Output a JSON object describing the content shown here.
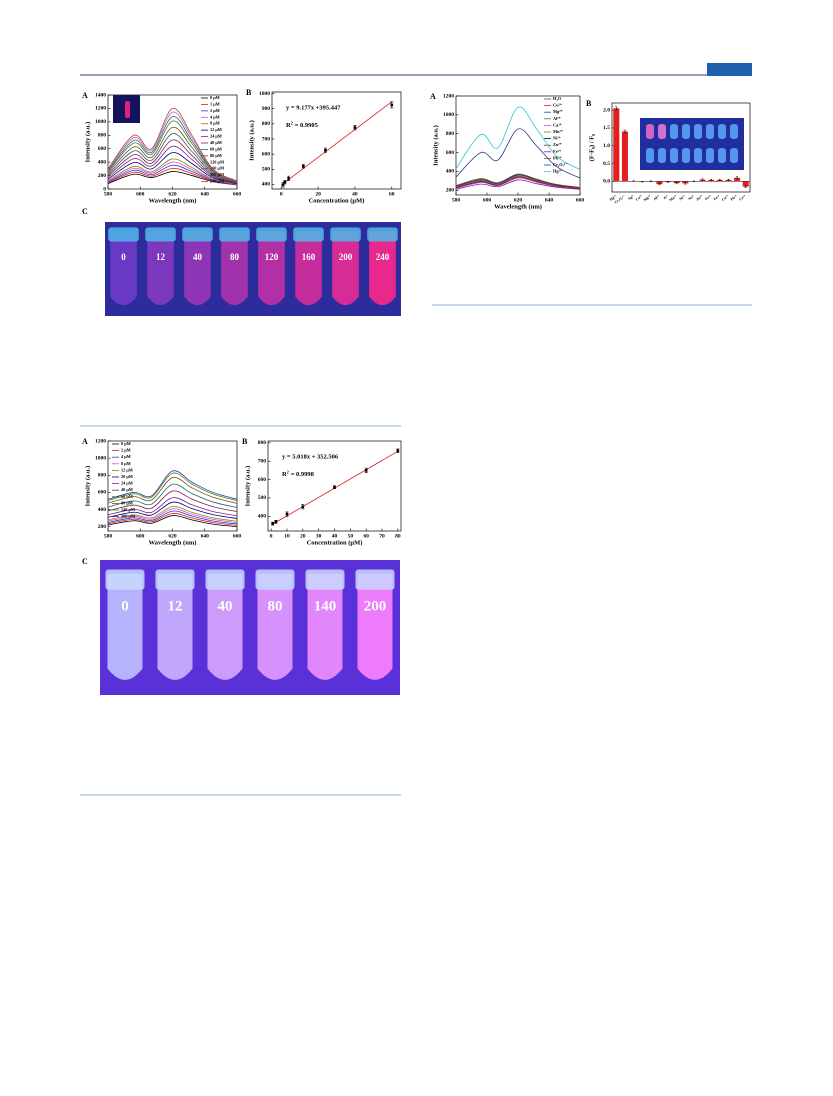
{
  "chart_data": [
    {
      "type": "line",
      "panel": "A",
      "xlabel": "Wavelength (nm)",
      "ylabel": "Intensity (a.u.)",
      "legend": "upper right",
      "xlim": [
        580,
        660
      ],
      "xticks": [
        580,
        600,
        620,
        640,
        660
      ],
      "ylim": [
        0,
        1400
      ],
      "yticks": [
        0,
        200,
        400,
        600,
        800,
        1000,
        1200,
        1400
      ],
      "x": [
        580,
        596,
        607,
        620,
        632,
        645,
        660
      ],
      "series": [
        {
          "name": "0 μM",
          "color": "#000000",
          "values": [
            80,
            220,
            170,
            260,
            200,
            110,
            60
          ]
        },
        {
          "name": "1 μM",
          "color": "#e31a1c",
          "values": [
            91,
            249,
            192,
            307,
            230,
            120,
            63
          ]
        },
        {
          "name": "2 μM",
          "color": "#1f3fd0",
          "values": [
            102,
            278,
            213,
            354,
            260,
            129,
            66
          ]
        },
        {
          "name": "4 μM",
          "color": "#e040e0",
          "values": [
            113,
            307,
            235,
            401,
            290,
            139,
            69
          ]
        },
        {
          "name": "8 μM",
          "color": "#8a8a00",
          "values": [
            124,
            336,
            256,
            448,
            320,
            148,
            72
          ]
        },
        {
          "name": "12 μM",
          "color": "#00007a",
          "values": [
            146,
            394,
            299,
            542,
            380,
            167,
            78
          ]
        },
        {
          "name": "24 μM",
          "color": "#7a1fa0",
          "values": [
            168,
            452,
            342,
            636,
            440,
            186,
            84
          ]
        },
        {
          "name": "40 μM",
          "color": "#8a1a3a",
          "values": [
            190,
            510,
            385,
            730,
            500,
            205,
            90
          ]
        },
        {
          "name": "60 μM",
          "color": "#1a6a7a",
          "values": [
            212,
            568,
            428,
            824,
            560,
            224,
            96
          ]
        },
        {
          "name": "80 μM",
          "color": "#8a4a10",
          "values": [
            234,
            626,
            471,
            918,
            620,
            243,
            102
          ]
        },
        {
          "name": "120 μM",
          "color": "#2a8a2a",
          "values": [
            256,
            684,
            514,
            1012,
            680,
            262,
            108
          ]
        },
        {
          "name": "160 μM",
          "color": "#4a4aa0",
          "values": [
            271,
            725,
            544,
            1078,
            722,
            275,
            112
          ]
        },
        {
          "name": "200 μM",
          "color": "#a07ab0",
          "values": [
            287,
            765,
            574,
            1144,
            764,
            289,
            116
          ]
        },
        {
          "name": "240 μM",
          "color": "#c03a3a",
          "values": [
            300,
            800,
            600,
            1200,
            800,
            300,
            120
          ]
        }
      ]
    },
    {
      "type": "scatter",
      "panel": "B",
      "xlabel": "Concentration (μM)",
      "ylabel": "Intensity (a.u.)",
      "xlim": [
        -5,
        65
      ],
      "xticks": [
        0,
        20,
        40,
        60
      ],
      "ylim": [
        370,
        1010
      ],
      "yticks": [
        400,
        500,
        600,
        700,
        800,
        900,
        1000
      ],
      "equation": "y = 9.177x +395.447",
      "r2": {
        "base": "R",
        "sup": "2",
        "rest": "= 0.9905"
      },
      "x": [
        1,
        2,
        4,
        12,
        24,
        40,
        60
      ],
      "values": [
        398,
        415,
        440,
        520,
        625,
        775,
        925
      ],
      "errors": [
        15,
        12,
        15,
        12,
        15,
        15,
        20
      ],
      "color": "#000000",
      "fit": {
        "color": "#e31a1c",
        "x": [
          0,
          60
        ],
        "values": [
          395.447,
          946.067
        ]
      }
    },
    {
      "type": "line",
      "panel": "A",
      "xlabel": "Wavelength (nm)",
      "ylabel": "Intensity (a.u.)",
      "legend": "upper left",
      "xlim": [
        580,
        660
      ],
      "xticks": [
        580,
        600,
        620,
        640,
        660
      ],
      "ylim": [
        150,
        1200
      ],
      "yticks": [
        200,
        400,
        600,
        800,
        1000,
        1200
      ],
      "x": [
        580,
        596,
        607,
        620,
        632,
        645,
        660
      ],
      "series": [
        {
          "name": "0 μM",
          "color": "#000000",
          "values": [
            220,
            270,
            240,
            330,
            280,
            230,
            200
          ]
        },
        {
          "name": "2 μM",
          "color": "#e31a1c",
          "values": [
            235,
            287,
            256,
            356,
            302,
            249,
            216
          ]
        },
        {
          "name": "4 μM",
          "color": "#1f3fd0",
          "values": [
            250,
            303,
            272,
            382,
            324,
            267,
            232
          ]
        },
        {
          "name": "8 μM",
          "color": "#e040e0",
          "values": [
            265,
            320,
            288,
            408,
            346,
            286,
            248
          ]
        },
        {
          "name": "12 μM",
          "color": "#8a8a00",
          "values": [
            280,
            336,
            304,
            434,
            368,
            304,
            264
          ]
        },
        {
          "name": "20 μM",
          "color": "#00007a",
          "values": [
            310,
            369,
            336,
            486,
            412,
            341,
            296
          ]
        },
        {
          "name": "24 μM",
          "color": "#7a1fa0",
          "values": [
            340,
            402,
            368,
            538,
            456,
            378,
            328
          ]
        },
        {
          "name": "40 μM",
          "color": "#8a1a3a",
          "values": [
            385,
            452,
            416,
            616,
            522,
            434,
            376
          ]
        },
        {
          "name": "60 μM",
          "color": "#1a6a7a",
          "values": [
            430,
            501,
            464,
            694,
            588,
            489,
            424
          ]
        },
        {
          "name": "80 μM",
          "color": "#8a4a10",
          "values": [
            475,
            551,
            512,
            772,
            654,
            545,
            472
          ]
        },
        {
          "name": "140 μM",
          "color": "#2a8a2a",
          "values": [
            505,
            584,
            544,
            824,
            698,
            582,
            504
          ]
        },
        {
          "name": "200 μM",
          "color": "#3a3a90",
          "values": [
            520,
            600,
            560,
            850,
            720,
            600,
            520
          ]
        }
      ]
    },
    {
      "type": "scatter",
      "panel": "B",
      "xlabel": "Concentration (μM)",
      "ylabel": "Intensity (a.u.)",
      "xlim": [
        -2,
        82
      ],
      "xticks": [
        0,
        10,
        20,
        30,
        40,
        50,
        60,
        70,
        80
      ],
      "ylim": [
        320,
        810
      ],
      "yticks": [
        400,
        500,
        600,
        700,
        800
      ],
      "equation": "y = 5.018x + 352.506",
      "r2": {
        "base": "R",
        "sup": "2",
        "rest": "= 0.9998"
      },
      "x": [
        1,
        3,
        10,
        20,
        40,
        60,
        80
      ],
      "values": [
        360,
        370,
        412,
        452,
        558,
        650,
        757
      ],
      "errors": [
        8,
        8,
        12,
        12,
        8,
        12,
        10
      ],
      "color": "#000000",
      "fit": {
        "color": "#e31a1c",
        "x": [
          0,
          80
        ],
        "values": [
          352.506,
          753.946
        ]
      }
    },
    {
      "type": "line",
      "panel": "A",
      "xlabel": "Wavelength (nm)",
      "ylabel": "Intensity (a.u.)",
      "legend": "upper right",
      "xlim": [
        580,
        660
      ],
      "xticks": [
        580,
        600,
        620,
        640,
        660
      ],
      "ylim": [
        150,
        1200
      ],
      "yticks": [
        200,
        400,
        600,
        800,
        1000,
        1200
      ],
      "x": [
        580,
        596,
        607,
        620,
        632,
        645,
        660
      ],
      "series": [
        {
          "name": "H₂O",
          "color": "#555555",
          "values": [
            230,
            300,
            262,
            350,
            300,
            250,
            220
          ]
        },
        {
          "name": "Cu²⁺",
          "color": "#e31a1c",
          "values": [
            225,
            290,
            255,
            338,
            292,
            245,
            218
          ]
        },
        {
          "name": "Mg²⁺",
          "color": "#1f3fd0",
          "values": [
            240,
            310,
            270,
            360,
            308,
            255,
            225
          ]
        },
        {
          "name": "Al³⁺",
          "color": "#2a8a2a",
          "values": [
            250,
            325,
            280,
            372,
            318,
            262,
            230
          ]
        },
        {
          "name": "Ca²⁺",
          "color": "#e040e0",
          "values": [
            220,
            282,
            250,
            330,
            286,
            240,
            214
          ]
        },
        {
          "name": "Mn²⁺",
          "color": "#8a8a00",
          "values": [
            235,
            298,
            262,
            345,
            298,
            248,
            222
          ]
        },
        {
          "name": "Ni²⁺",
          "color": "#00007a",
          "values": [
            228,
            292,
            256,
            340,
            294,
            246,
            219
          ]
        },
        {
          "name": "Zn²⁺",
          "color": "#8a1a3a",
          "values": [
            245,
            315,
            275,
            366,
            312,
            258,
            228
          ]
        },
        {
          "name": "Fe³⁺",
          "color": "#7a1fa0",
          "values": [
            210,
            265,
            238,
            310,
            270,
            232,
            210
          ]
        },
        {
          "name": "Pb²⁺",
          "color": "#8a4a10",
          "values": [
            232,
            296,
            260,
            342,
            296,
            247,
            221
          ]
        },
        {
          "name": "Cr₂O₇²⁻",
          "color": "#2a3a9a",
          "values": [
            340,
            600,
            520,
            850,
            670,
            450,
            330
          ]
        },
        {
          "name": "Hg²⁺",
          "color": "#30c8d0",
          "values": [
            430,
            790,
            650,
            1080,
            850,
            560,
            420
          ]
        }
      ]
    },
    {
      "type": "bar",
      "panel": "B",
      "ylabel": "(F-F₀) / F₀",
      "color": "#e02020",
      "ylim": [
        -0.3,
        2.2
      ],
      "yticks": [
        {
          "value": 0,
          "label": "0.0"
        },
        {
          "value": 0.5,
          "label": "0.5"
        },
        {
          "value": 1,
          "label": "1.0"
        },
        {
          "value": 1.5,
          "label": "1.5"
        },
        {
          "value": 2,
          "label": "2.0"
        }
      ],
      "categories": [
        "Hg²⁺",
        "Cr₂O₇²⁻",
        "Ag⁺",
        "Ca²⁺",
        "Mg²⁺",
        "Al³⁺",
        "K⁺",
        "Mn²⁺",
        "Ni²⁺",
        "Na⁺",
        "Zn²⁺",
        "Fe³⁺",
        "Fe²⁺",
        "Cu²⁺",
        "Pb²⁺",
        "Cr³⁺"
      ],
      "values": [
        2.05,
        1.4,
        0.01,
        -0.01,
        0.0,
        -0.08,
        -0.02,
        -0.05,
        -0.06,
        0.0,
        0.05,
        0.04,
        0.04,
        0.04,
        0.1,
        -0.15
      ],
      "errors": [
        0.04,
        0.04,
        0.01,
        0.01,
        0.01,
        0.02,
        0.01,
        0.02,
        0.02,
        0.01,
        0.02,
        0.02,
        0.02,
        0.02,
        0.03,
        0.03
      ]
    }
  ],
  "photos": [
    {
      "panel": "C",
      "labels": [
        "0",
        "12",
        "40",
        "80",
        "120",
        "160",
        "200",
        "240"
      ]
    },
    {
      "panel": "C",
      "labels": [
        "0",
        "12",
        "40",
        "80",
        "140",
        "200"
      ]
    }
  ]
}
